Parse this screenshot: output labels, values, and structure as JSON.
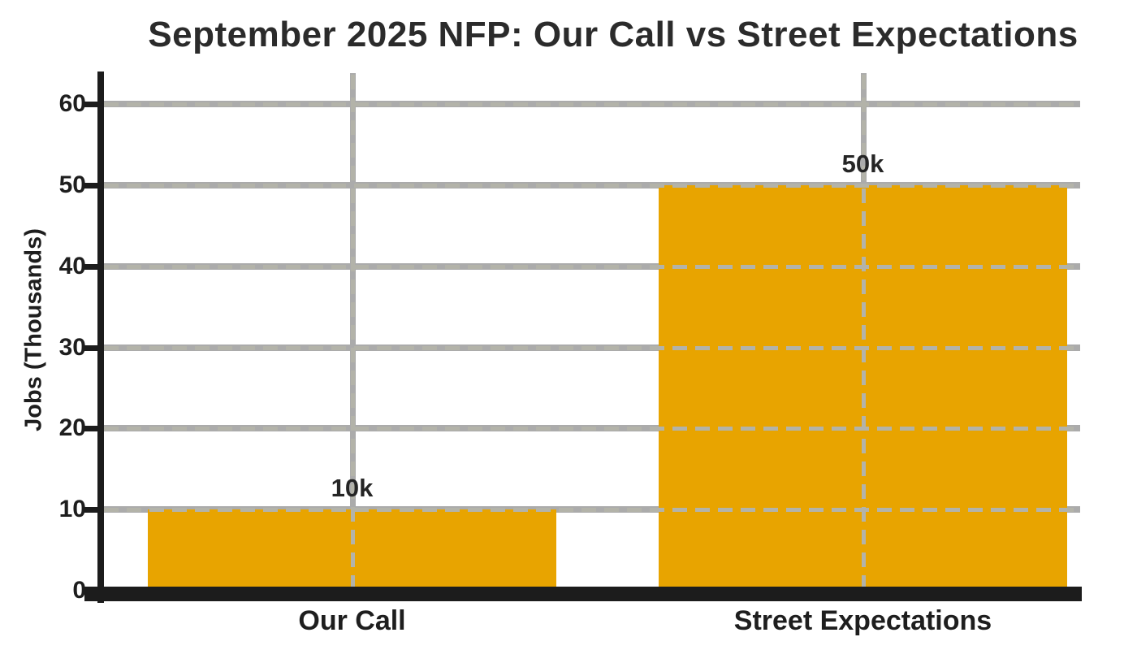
{
  "page": {
    "background": "#ffffff"
  },
  "chart_data": {
    "type": "bar",
    "title": "September 2025 NFP: Our Call vs Street Expectations",
    "categories": [
      "Our Call",
      "Street Expectations"
    ],
    "values": [
      10,
      50
    ],
    "bar_labels": [
      "10k",
      "50k"
    ],
    "xlabel": "",
    "ylabel": "Jobs (Thousands)",
    "ylim": [
      0,
      64
    ],
    "yticks": [
      0,
      10,
      20,
      30,
      40,
      50,
      60
    ],
    "ytick_labels": [
      "0",
      "10",
      "20",
      "30",
      "40",
      "50",
      "60"
    ],
    "grid": true,
    "grid_style": "solid behind bars, dashed over bars",
    "legend": false,
    "colors": {
      "bar": "#e8a400",
      "grid": "#ababab",
      "grid_dash": "#b3b3a9",
      "axis": "#1c1c1c",
      "text": "#252525"
    }
  }
}
